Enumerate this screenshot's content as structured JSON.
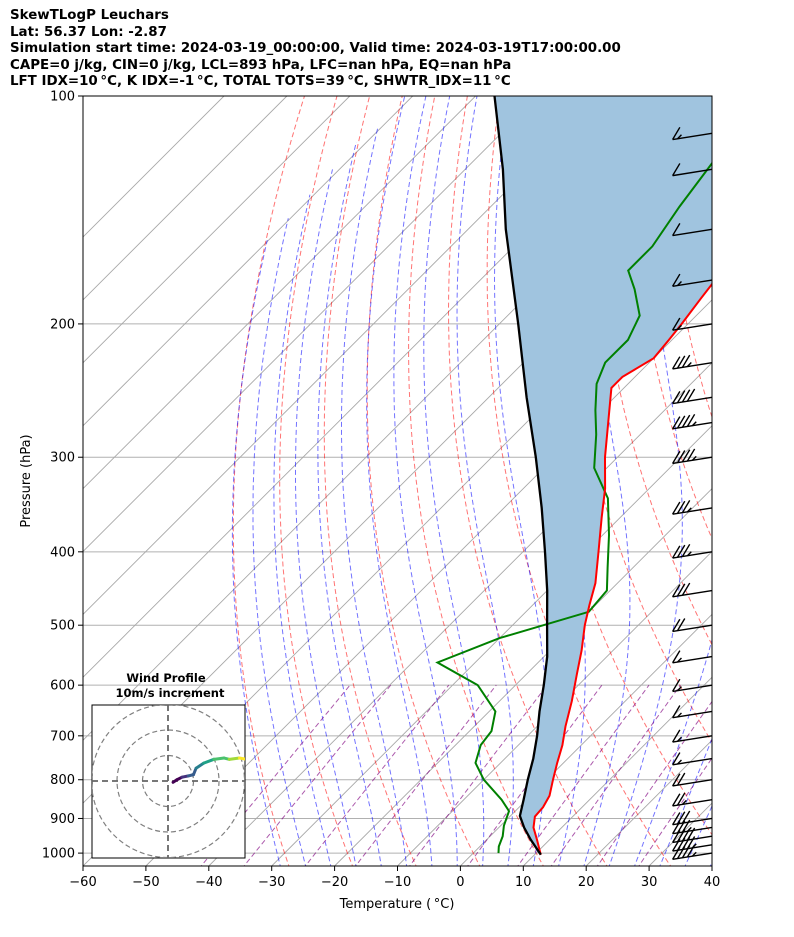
{
  "header": {
    "line1": "SkewTLogP Leuchars",
    "line2": "Lat: 56.37   Lon: -2.87",
    "line3": "Simulation start time: 2024-03-19_00:00:00, Valid time: 2024-03-19T17:00:00.00",
    "line4": "CAPE=0 j/kg, CIN=0 j/kg, LCL=893 hPa, LFC=nan hPa, EQ=nan hPa",
    "line5": "LFT IDX=10 °C, K IDX=-1 °C, TOTAL TOTS=39 °C, SHWTR_IDX=11 °C"
  },
  "colors": {
    "temperature": "#ff0000",
    "dewpoint": "#008000",
    "parcel": "#000000",
    "cape_fill": "#a0c4df",
    "dry_adiabat": "#ff0000",
    "moist_adiabat": "#0000ff",
    "mixing_ratio": "#800080",
    "isotherm": "#808080"
  },
  "chart_data": {
    "type": "line",
    "xlabel": "Temperature ( °C)",
    "ylabel": "Pressure (hPa)",
    "xlim": [
      -60,
      40
    ],
    "ylim": [
      1040,
      100
    ],
    "y_scale": "log",
    "skew": true,
    "grid": true,
    "x_ticks": [
      -60,
      -50,
      -40,
      -30,
      -20,
      -10,
      0,
      10,
      20,
      30,
      40
    ],
    "y_ticks": [
      1000,
      900,
      800,
      700,
      600,
      500,
      400,
      300,
      200,
      100
    ],
    "temperature": [
      {
        "p": 1005,
        "t": 11.0
      },
      {
        "p": 960,
        "t": 8.0
      },
      {
        "p": 925,
        "t": 5.5
      },
      {
        "p": 895,
        "t": 4.0
      },
      {
        "p": 870,
        "t": 3.8
      },
      {
        "p": 840,
        "t": 3.0
      },
      {
        "p": 800,
        "t": 1.0
      },
      {
        "p": 760,
        "t": -1.0
      },
      {
        "p": 720,
        "t": -3.0
      },
      {
        "p": 680,
        "t": -5.5
      },
      {
        "p": 630,
        "t": -8.5
      },
      {
        "p": 580,
        "t": -12.0
      },
      {
        "p": 540,
        "t": -15.0
      },
      {
        "p": 500,
        "t": -18.5
      },
      {
        "p": 470,
        "t": -21.0
      },
      {
        "p": 440,
        "t": -23.5
      },
      {
        "p": 400,
        "t": -28.0
      },
      {
        "p": 360,
        "t": -33.0
      },
      {
        "p": 330,
        "t": -37.0
      },
      {
        "p": 300,
        "t": -42.0
      },
      {
        "p": 270,
        "t": -47.0
      },
      {
        "p": 243,
        "t": -52.0
      },
      {
        "p": 235,
        "t": -52.0
      },
      {
        "p": 222,
        "t": -50.0
      },
      {
        "p": 210,
        "t": -50.5
      },
      {
        "p": 200,
        "t": -51.0
      },
      {
        "p": 185,
        "t": -52.0
      },
      {
        "p": 170,
        "t": -53.0
      },
      {
        "p": 150,
        "t": -55.0
      },
      {
        "p": 135,
        "t": -56.0
      },
      {
        "p": 120,
        "t": -57.5
      },
      {
        "p": 108,
        "t": -58.5
      },
      {
        "p": 100,
        "t": -59.5
      }
    ],
    "dewpoint": [
      {
        "p": 1000,
        "t": 4.0
      },
      {
        "p": 980,
        "t": 3.0
      },
      {
        "p": 950,
        "t": 2.0
      },
      {
        "p": 920,
        "t": 0.5
      },
      {
        "p": 880,
        "t": -1.0
      },
      {
        "p": 850,
        "t": -4.0
      },
      {
        "p": 800,
        "t": -10.0
      },
      {
        "p": 760,
        "t": -14.0
      },
      {
        "p": 720,
        "t": -16.0
      },
      {
        "p": 690,
        "t": -16.5
      },
      {
        "p": 650,
        "t": -19.0
      },
      {
        "p": 600,
        "t": -26.0
      },
      {
        "p": 560,
        "t": -36.0
      },
      {
        "p": 520,
        "t": -30.0
      },
      {
        "p": 480,
        "t": -20.0
      },
      {
        "p": 450,
        "t": -20.5
      },
      {
        "p": 420,
        "t": -24.0
      },
      {
        "p": 380,
        "t": -29.0
      },
      {
        "p": 340,
        "t": -35.0
      },
      {
        "p": 310,
        "t": -42.0
      },
      {
        "p": 280,
        "t": -47.0
      },
      {
        "p": 260,
        "t": -51.0
      },
      {
        "p": 240,
        "t": -55.0
      },
      {
        "p": 225,
        "t": -57.0
      },
      {
        "p": 210,
        "t": -57.0
      },
      {
        "p": 195,
        "t": -59.0
      },
      {
        "p": 180,
        "t": -64.0
      },
      {
        "p": 170,
        "t": -68.0
      },
      {
        "p": 158,
        "t": -68.0
      },
      {
        "p": 140,
        "t": -70.0
      },
      {
        "p": 120,
        "t": -72.0
      },
      {
        "p": 100,
        "t": -74.0
      }
    ],
    "parcel": [
      {
        "p": 1005,
        "t": 11.0
      },
      {
        "p": 960,
        "t": 7.0
      },
      {
        "p": 925,
        "t": 4.0
      },
      {
        "p": 893,
        "t": 1.5
      },
      {
        "p": 850,
        "t": -0.5
      },
      {
        "p": 800,
        "t": -3.0
      },
      {
        "p": 750,
        "t": -5.5
      },
      {
        "p": 700,
        "t": -8.5
      },
      {
        "p": 650,
        "t": -12.0
      },
      {
        "p": 600,
        "t": -15.5
      },
      {
        "p": 550,
        "t": -19.5
      },
      {
        "p": 500,
        "t": -24.5
      },
      {
        "p": 450,
        "t": -30.0
      },
      {
        "p": 400,
        "t": -36.5
      },
      {
        "p": 350,
        "t": -44.0
      },
      {
        "p": 300,
        "t": -53.0
      },
      {
        "p": 250,
        "t": -64.0
      },
      {
        "p": 200,
        "t": -77.0
      },
      {
        "p": 150,
        "t": -94.0
      },
      {
        "p": 125,
        "t": -104.0
      },
      {
        "p": 100,
        "t": -117.0
      }
    ],
    "wind_barbs": [
      {
        "p": 1000,
        "speed_kt": 45
      },
      {
        "p": 975,
        "speed_kt": 45
      },
      {
        "p": 950,
        "speed_kt": 40
      },
      {
        "p": 925,
        "speed_kt": 35
      },
      {
        "p": 900,
        "speed_kt": 30
      },
      {
        "p": 850,
        "speed_kt": 25
      },
      {
        "p": 800,
        "speed_kt": 20
      },
      {
        "p": 750,
        "speed_kt": 15
      },
      {
        "p": 700,
        "speed_kt": 15
      },
      {
        "p": 650,
        "speed_kt": 15
      },
      {
        "p": 600,
        "speed_kt": 15
      },
      {
        "p": 550,
        "speed_kt": 15
      },
      {
        "p": 500,
        "speed_kt": 20
      },
      {
        "p": 450,
        "speed_kt": 30
      },
      {
        "p": 400,
        "speed_kt": 35
      },
      {
        "p": 350,
        "speed_kt": 35
      },
      {
        "p": 300,
        "speed_kt": 45
      },
      {
        "p": 270,
        "speed_kt": 45
      },
      {
        "p": 250,
        "speed_kt": 40
      },
      {
        "p": 225,
        "speed_kt": 35
      },
      {
        "p": 200,
        "speed_kt": 15
      },
      {
        "p": 175,
        "speed_kt": 15
      },
      {
        "p": 150,
        "speed_kt": 10
      },
      {
        "p": 125,
        "speed_kt": 10
      },
      {
        "p": 112,
        "speed_kt": 15
      }
    ],
    "inset": {
      "title": "Wind Profile",
      "subtitle": "10m/s increment",
      "rings_ms": [
        10,
        20,
        30
      ],
      "hodograph": [
        {
          "u": 2,
          "v": -0.5
        },
        {
          "u": 3.5,
          "v": 0.5
        },
        {
          "u": 5.5,
          "v": 1.5
        },
        {
          "u": 8,
          "v": 2
        },
        {
          "u": 10,
          "v": 2.5
        },
        {
          "u": 11,
          "v": 5
        },
        {
          "u": 14,
          "v": 7
        },
        {
          "u": 18,
          "v": 8.5
        },
        {
          "u": 22,
          "v": 9
        },
        {
          "u": 24,
          "v": 8.5
        },
        {
          "u": 28,
          "v": 9
        },
        {
          "u": 34,
          "v": 8
        }
      ]
    }
  }
}
